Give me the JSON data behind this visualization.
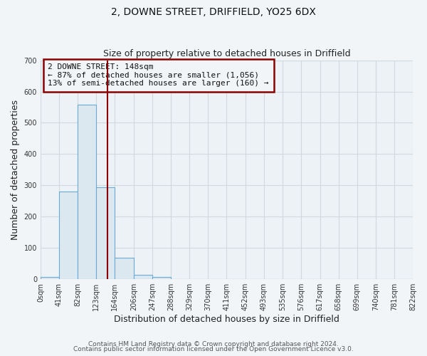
{
  "title": "2, DOWNE STREET, DRIFFIELD, YO25 6DX",
  "subtitle": "Size of property relative to detached houses in Driffield",
  "xlabel": "Distribution of detached houses by size in Driffield",
  "ylabel": "Number of detached properties",
  "bin_edges": [
    0,
    41,
    82,
    123,
    164,
    206,
    247,
    288,
    329,
    370,
    411,
    452,
    493,
    535,
    576,
    617,
    658,
    699,
    740,
    781,
    822
  ],
  "bar_heights": [
    8,
    280,
    558,
    293,
    68,
    14,
    7,
    0,
    0,
    0,
    0,
    0,
    0,
    0,
    0,
    0,
    0,
    0,
    0,
    0
  ],
  "bar_color": "#dce8f0",
  "bar_edgecolor": "#6aaad4",
  "ylim": [
    0,
    700
  ],
  "yticks": [
    0,
    100,
    200,
    300,
    400,
    500,
    600,
    700
  ],
  "property_size": 148,
  "vline_color": "#8b0000",
  "annotation_box_edgecolor": "#8b0000",
  "annotation_line1": "2 DOWNE STREET: 148sqm",
  "annotation_line2": "← 87% of detached houses are smaller (1,056)",
  "annotation_line3": "13% of semi-detached houses are larger (160) →",
  "footer_line1": "Contains HM Land Registry data © Crown copyright and database right 2024.",
  "footer_line2": "Contains public sector information licensed under the Open Government Licence v3.0.",
  "bg_color": "#f2f5f8",
  "plot_bg_color": "#edf2f7",
  "grid_color": "#d0d8e0",
  "title_fontsize": 10,
  "subtitle_fontsize": 9,
  "axis_label_fontsize": 9,
  "tick_fontsize": 7,
  "annotation_fontsize": 8,
  "footer_fontsize": 6.5
}
